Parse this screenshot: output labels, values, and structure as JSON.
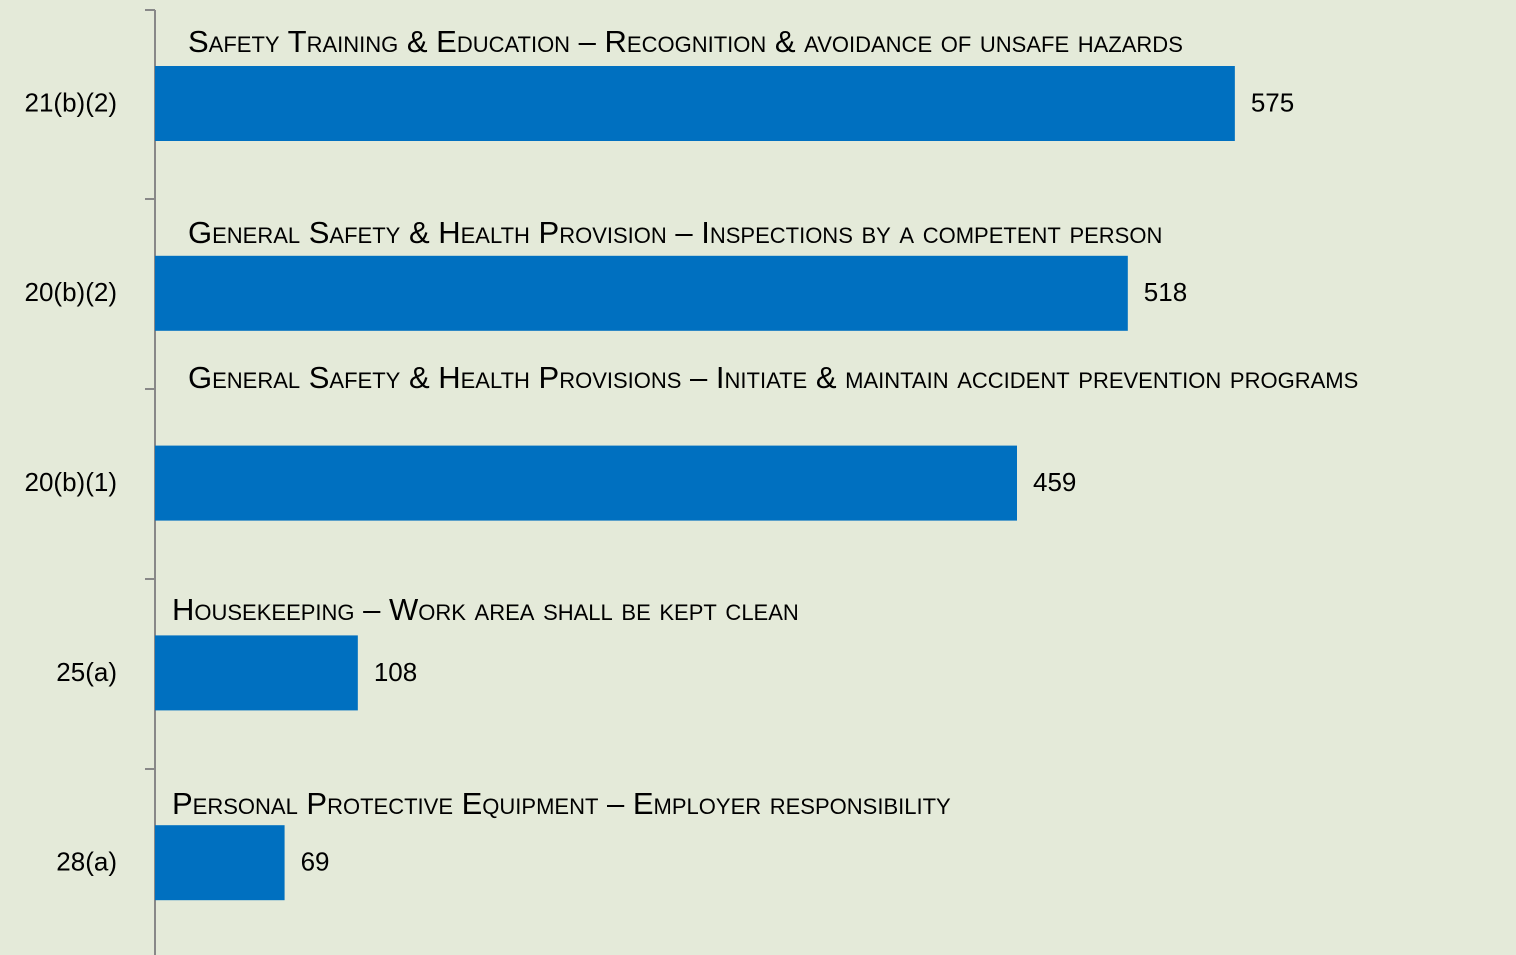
{
  "chart_data": {
    "type": "bar",
    "orientation": "horizontal",
    "categories": [
      "21(b)(2)",
      "20(b)(2)",
      "20(b)(1)",
      "25(a)",
      "28(a)"
    ],
    "annotations": [
      "Safety Training & Education – Recognition & avoidance of unsafe hazards",
      "General Safety & Health Provision – Inspections by a competent person",
      "General Safety & Health Provisions – Initiate & maintain accident prevention programs",
      "Housekeeping – Work area shall be kept clean",
      "Personal Protective Equipment – Employer responsibility"
    ],
    "values": [
      575,
      518,
      459,
      108,
      69
    ],
    "color": "#0070c0",
    "xlim": [
      0,
      600
    ]
  }
}
